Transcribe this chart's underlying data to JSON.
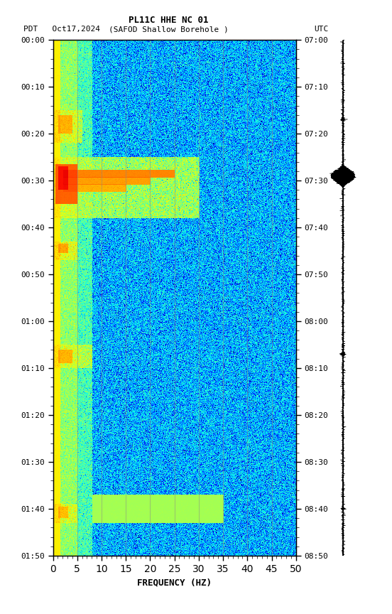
{
  "title_line1": "PL11C HHE NC 01",
  "title_line2_left": "PDT   Oct17,2024",
  "title_line2_center": "(SAFOD Shallow Borehole )",
  "title_line2_right": "UTC",
  "xlabel": "FREQUENCY (HZ)",
  "freq_min": 0,
  "freq_max": 50,
  "ytick_interval_minutes": 10,
  "xtick_major": 5,
  "xtick_minor": 1,
  "vertical_gridlines": [
    5,
    10,
    15,
    20,
    25,
    30,
    35,
    40,
    45
  ],
  "background_color": "#ffffff",
  "colormap": "jet",
  "seed": 42,
  "time_label_left": [
    "00:00",
    "00:10",
    "00:20",
    "00:30",
    "00:40",
    "00:50",
    "01:00",
    "01:10",
    "01:20",
    "01:30",
    "01:40",
    "01:50"
  ],
  "time_label_right": [
    "07:00",
    "07:10",
    "07:20",
    "07:30",
    "07:40",
    "07:50",
    "08:00",
    "08:10",
    "08:20",
    "08:30",
    "08:40",
    "08:50"
  ],
  "vmin": -4.5,
  "vmax": 1.5
}
